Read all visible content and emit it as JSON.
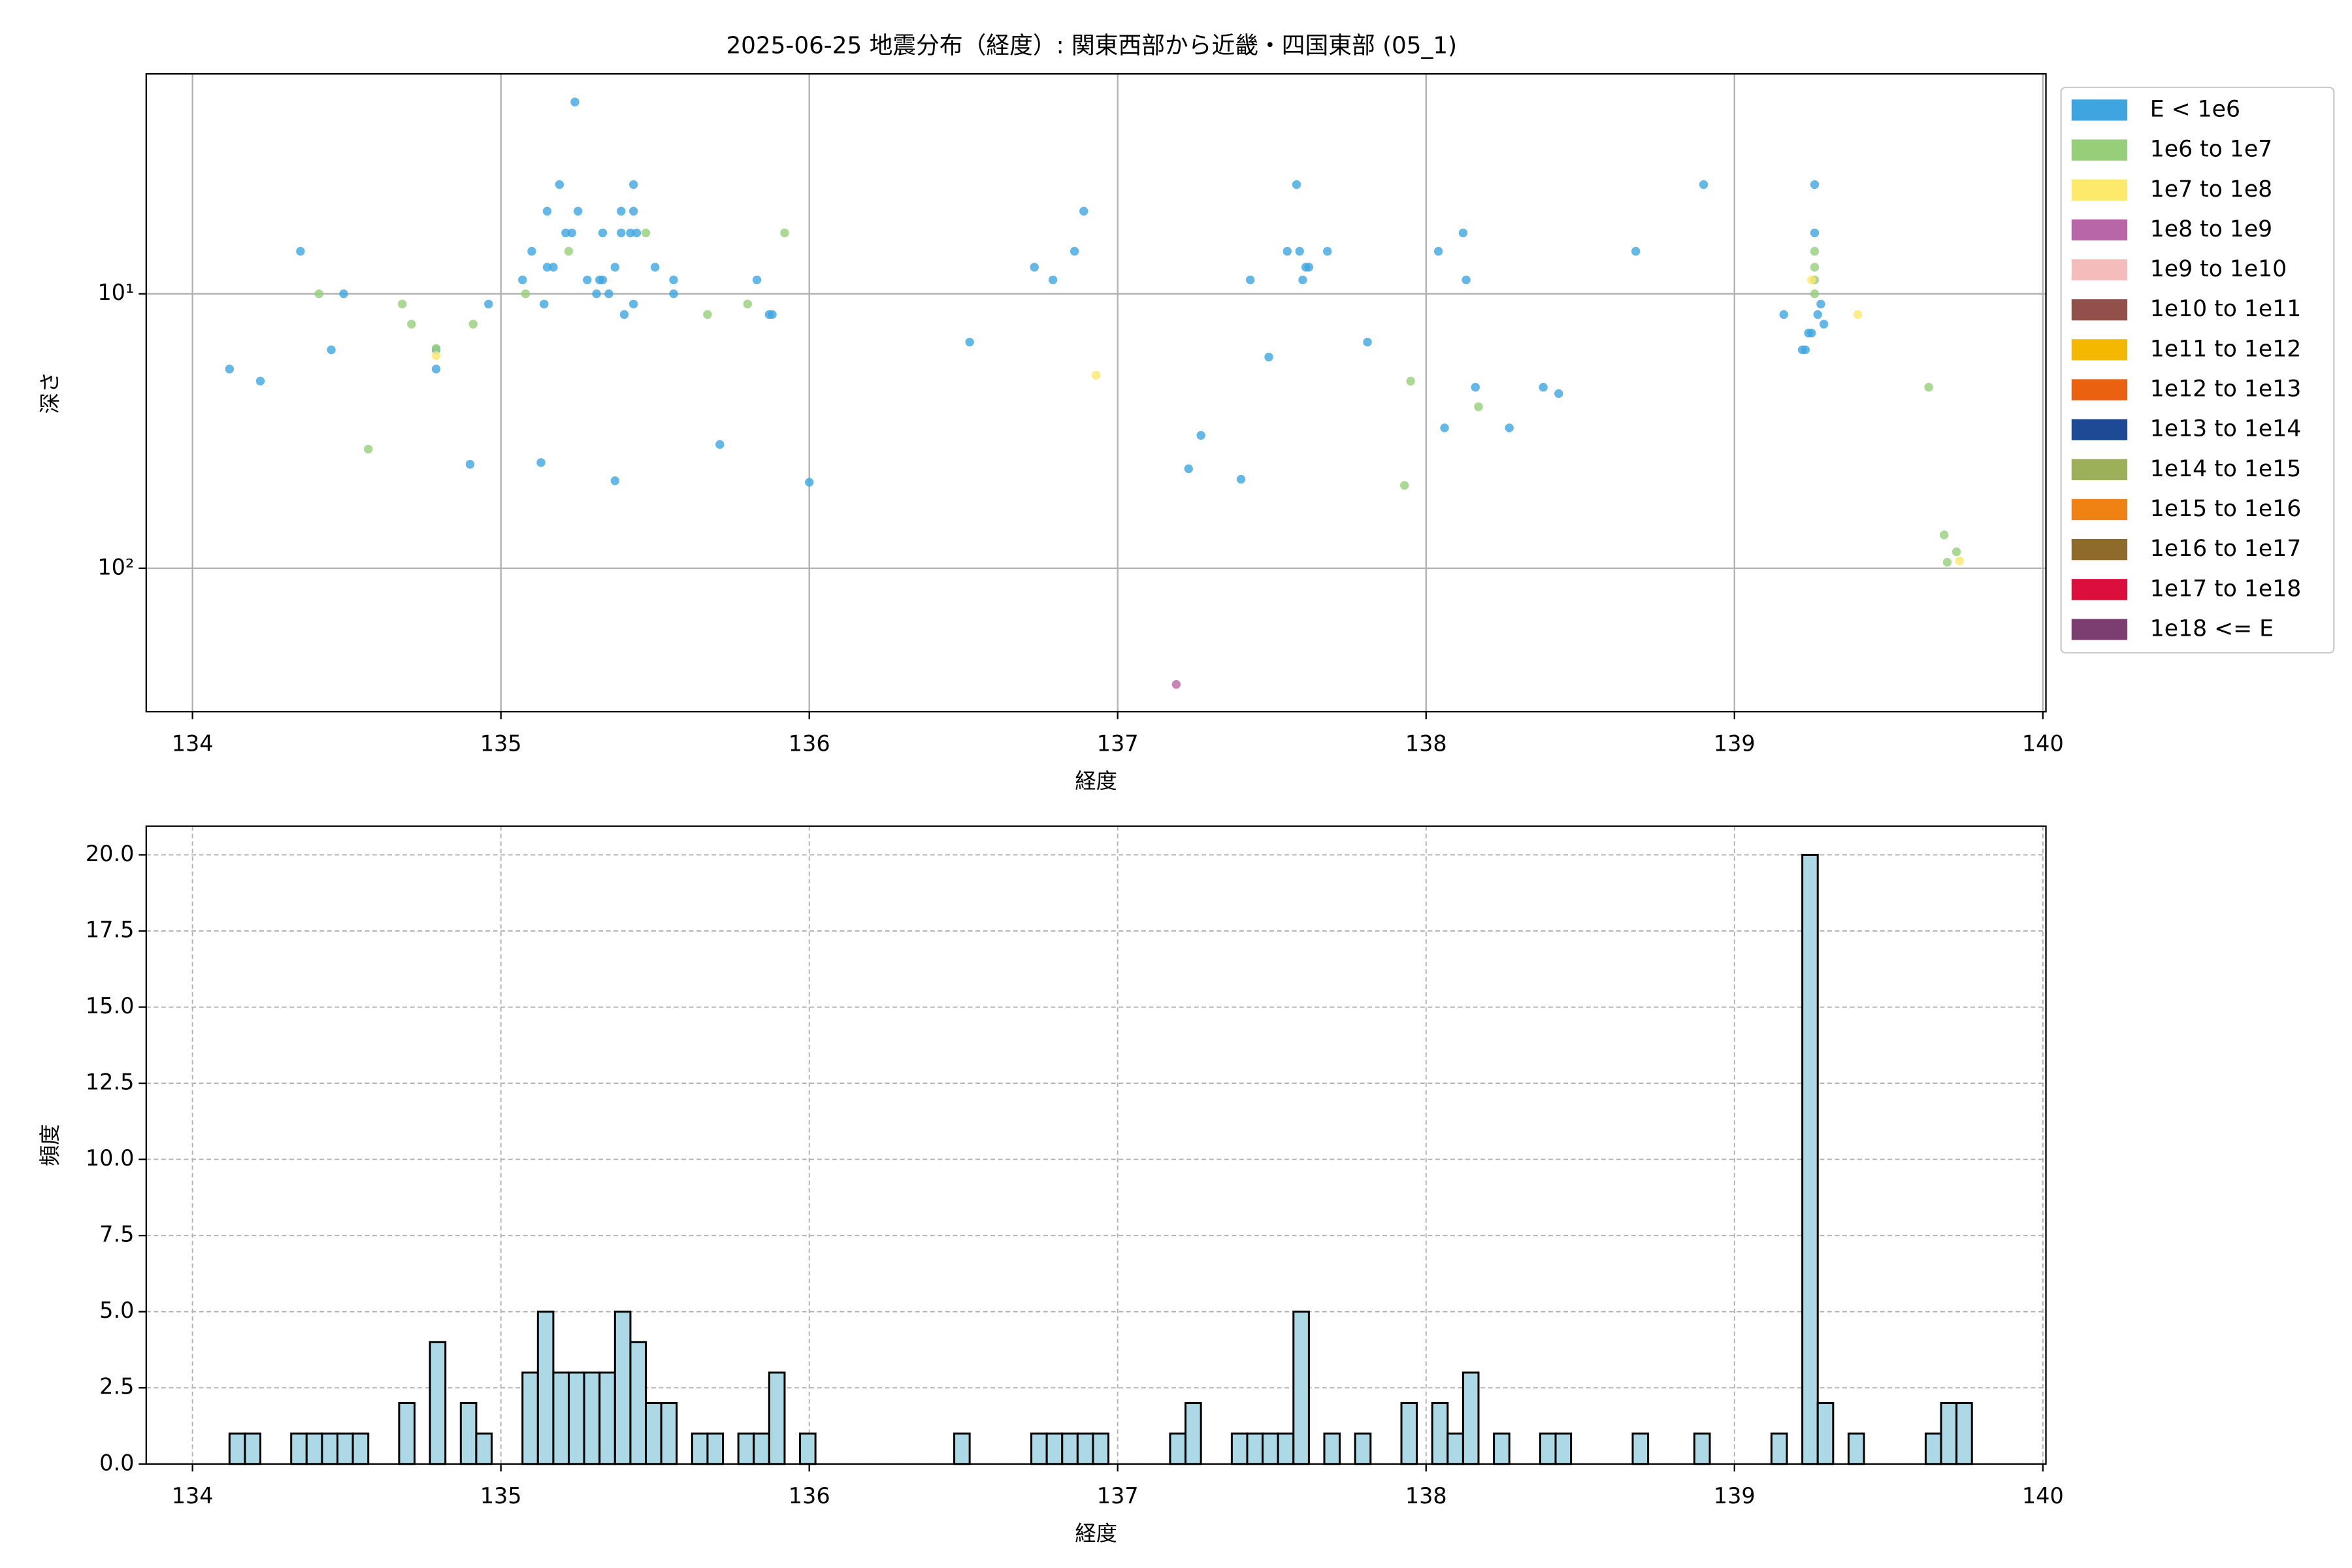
{
  "chart_data": [
    {
      "type": "scatter",
      "title": "2025-06-25 地震分布（経度）: 関東西部から近畿・四国東部 (05_1)",
      "x_label": "経度",
      "y_label": "深さ",
      "xlim": [
        133.85,
        140.01
      ],
      "xticks": [
        134,
        135,
        136,
        137,
        138,
        139,
        140
      ],
      "ylim": [
        1.58,
        333
      ],
      "y_scale": "log",
      "y_inverted": true,
      "yticks": [
        {
          "value": 10,
          "label": "10¹"
        },
        {
          "value": 100,
          "label": "10²"
        }
      ],
      "grid": true,
      "legend": "outside right",
      "series": [
        {
          "name": "E < 1e6",
          "color": "#3ea5e0",
          "x": [
            134.12,
            134.22,
            134.35,
            134.45,
            134.49,
            134.79,
            134.79,
            134.9,
            134.96,
            135.07,
            135.1,
            135.13,
            135.14,
            135.15,
            135.15,
            135.17,
            135.19,
            135.21,
            135.23,
            135.24,
            135.25,
            135.28,
            135.31,
            135.32,
            135.33,
            135.33,
            135.35,
            135.37,
            135.37,
            135.39,
            135.39,
            135.4,
            135.42,
            135.43,
            135.43,
            135.43,
            135.44,
            135.5,
            135.56,
            135.56,
            135.71,
            135.83,
            135.87,
            135.88,
            136.0,
            136.52,
            136.73,
            136.79,
            136.86,
            136.89,
            137.23,
            137.27,
            137.4,
            137.43,
            137.49,
            137.55,
            137.58,
            137.59,
            137.6,
            137.61,
            137.62,
            137.68,
            137.81,
            138.04,
            138.06,
            138.12,
            138.13,
            138.16,
            138.27,
            138.38,
            138.43,
            138.68,
            138.9,
            139.16,
            139.22,
            139.23,
            139.24,
            139.25,
            139.26,
            139.26,
            139.27,
            139.28,
            139.29
          ],
          "y": [
            18.8,
            20.8,
            7.0,
            16.0,
            10,
            18.8,
            16,
            41.8,
            10.9,
            8.9,
            7.0,
            41.2,
            10.9,
            5.0,
            8.0,
            8.0,
            4.0,
            6.0,
            6.0,
            2.0,
            5.0,
            8.9,
            10,
            8.9,
            8.9,
            6.0,
            10,
            8.0,
            48,
            5.0,
            6,
            11.9,
            6,
            4,
            5,
            10.9,
            6,
            8,
            8.9,
            10,
            35.4,
            8.9,
            11.9,
            11.9,
            48.6,
            15.0,
            8,
            8.9,
            7,
            5,
            43.4,
            32.8,
            47.4,
            8.9,
            17.0,
            7,
            4,
            7,
            8.9,
            8,
            8,
            7,
            15,
            7,
            30.8,
            6,
            8.9,
            21.9,
            30.8,
            21.9,
            23.1,
            7,
            4,
            11.9,
            16,
            16,
            13.9,
            13.9,
            4,
            6,
            11.9,
            10.9,
            12.9
          ]
        },
        {
          "name": "1e6 to 1e7",
          "color": "#96ce7a",
          "x": [
            134.41,
            134.57,
            134.68,
            134.71,
            134.79,
            134.91,
            135.08,
            135.22,
            135.47,
            135.67,
            135.8,
            135.92,
            137.95,
            137.93,
            138.17,
            139.26,
            139.26,
            139.26,
            139.26,
            139.63,
            139.68,
            139.69,
            139.72
          ],
          "y": [
            10,
            36.8,
            10.9,
            12.9,
            15.8,
            12.9,
            10,
            7,
            6,
            11.9,
            10.9,
            6,
            20.8,
            49.9,
            25.8,
            7,
            8,
            8.9,
            10,
            21.9,
            75.6,
            95.1,
            87.1
          ]
        },
        {
          "name": "1e7 to 1e8",
          "color": "#fde96a",
          "x": [
            134.79,
            136.93,
            139.25,
            139.4,
            139.73
          ],
          "y": [
            16.8,
            19.8,
            8.9,
            11.9,
            94
          ]
        },
        {
          "name": "1e8 to 1e9",
          "color": "#b966a8",
          "x": [
            137.19
          ],
          "y": [
            265
          ]
        },
        {
          "name": "1e9 to 1e10",
          "color": "#f4bcba",
          "x": [],
          "y": []
        },
        {
          "name": "1e10 to 1e11",
          "color": "#93504a",
          "x": [],
          "y": []
        },
        {
          "name": "1e11 to 1e12",
          "color": "#f5b800",
          "x": [],
          "y": []
        },
        {
          "name": "1e12 to 1e13",
          "color": "#ea6110",
          "x": [],
          "y": []
        },
        {
          "name": "1e13 to 1e14",
          "color": "#1e4a95",
          "x": [],
          "y": []
        },
        {
          "name": "1e14 to 1e15",
          "color": "#9bb058",
          "x": [],
          "y": []
        },
        {
          "name": "1e15 to 1e16",
          "color": "#f08214",
          "x": [],
          "y": []
        },
        {
          "name": "1e16 to 1e17",
          "color": "#8e6b2b",
          "x": [],
          "y": []
        },
        {
          "name": "1e17 to 1e18",
          "color": "#dc0e3c",
          "x": [],
          "y": []
        },
        {
          "name": "1e18 <= E",
          "color": "#7c3d71",
          "x": [],
          "y": []
        }
      ]
    },
    {
      "type": "histogram",
      "x_label": "経度",
      "y_label": "頻度",
      "xlim": [
        133.85,
        140.01
      ],
      "xticks": [
        134,
        135,
        136,
        137,
        138,
        139,
        140
      ],
      "ylim": [
        0,
        20.94
      ],
      "yticks": [
        {
          "value": 0,
          "label": "0.0"
        },
        2.5,
        {
          "value": 5,
          "label": "5.0"
        },
        7.5,
        {
          "value": 10,
          "label": "10.0"
        },
        12.5,
        {
          "value": 15,
          "label": "15.0"
        },
        17.5,
        {
          "value": 20,
          "label": "20.0"
        }
      ],
      "grid": true,
      "color": "#add8e6",
      "edge_color": "#000000",
      "bins": [
        134.12,
        134.17,
        134.22,
        134.27,
        134.32,
        134.37,
        134.42,
        134.47,
        134.52,
        134.57,
        134.62,
        134.67,
        134.72,
        134.77,
        134.82,
        134.87,
        134.92,
        134.97,
        135.02,
        135.07,
        135.12,
        135.17,
        135.22,
        135.27,
        135.32,
        135.37,
        135.42,
        135.47,
        135.52,
        135.57,
        135.62,
        135.67,
        135.72,
        135.77,
        135.82,
        135.87,
        135.92,
        135.97,
        136.02,
        136.07,
        136.12,
        136.17,
        136.22,
        136.27,
        136.32,
        136.37,
        136.42,
        136.47,
        136.52,
        136.57,
        136.62,
        136.67,
        136.72,
        136.77,
        136.82,
        136.87,
        136.92,
        136.97,
        137.02,
        137.07,
        137.12,
        137.17,
        137.22,
        137.27,
        137.32,
        137.37,
        137.42,
        137.47,
        137.52,
        137.57,
        137.62,
        137.67,
        137.72,
        137.77,
        137.82,
        137.87,
        137.92,
        137.97,
        138.02,
        138.07,
        138.12,
        138.17,
        138.22,
        138.27,
        138.32,
        138.37,
        138.42,
        138.47,
        138.52,
        138.57,
        138.62,
        138.67,
        138.72,
        138.77,
        138.82,
        138.87,
        138.92,
        138.97,
        139.02,
        139.07,
        139.12,
        139.17,
        139.22,
        139.27,
        139.32,
        139.37,
        139.42,
        139.47,
        139.52,
        139.57,
        139.62,
        139.67,
        139.72,
        139.77
      ],
      "counts": [
        1,
        1,
        0,
        0,
        1,
        1,
        1,
        1,
        1,
        0,
        0,
        2,
        0,
        4,
        0,
        2,
        1,
        0,
        0,
        3,
        5,
        3,
        3,
        3,
        3,
        5,
        4,
        2,
        2,
        0,
        1,
        1,
        0,
        1,
        1,
        3,
        0,
        1,
        0,
        0,
        0,
        0,
        0,
        0,
        0,
        0,
        0,
        1,
        0,
        0,
        0,
        0,
        1,
        1,
        1,
        1,
        1,
        0,
        0,
        0,
        0,
        1,
        2,
        0,
        0,
        1,
        1,
        1,
        1,
        5,
        0,
        1,
        0,
        1,
        0,
        0,
        2,
        0,
        2,
        1,
        3,
        0,
        1,
        0,
        0,
        1,
        1,
        0,
        0,
        0,
        0,
        1,
        0,
        0,
        0,
        1,
        0,
        0,
        0,
        0,
        1,
        0,
        20,
        2,
        0,
        1,
        0,
        0,
        0,
        0,
        1,
        2,
        2
      ]
    }
  ]
}
